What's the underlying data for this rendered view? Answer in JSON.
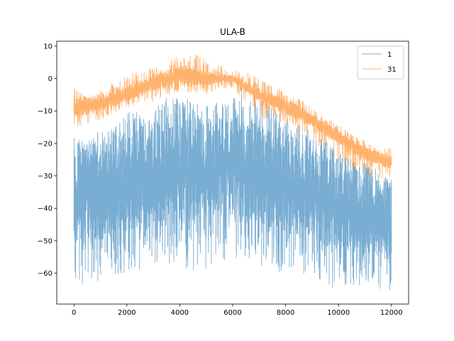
{
  "chart_data": {
    "type": "line",
    "title": "ULA-B",
    "xlabel": "",
    "ylabel": "",
    "xlim": [
      -650,
      12650
    ],
    "ylim": [
      -69.5,
      11.5
    ],
    "xticks": [
      0,
      2000,
      4000,
      6000,
      8000,
      10000,
      12000
    ],
    "xtick_labels": [
      "0",
      "2000",
      "4000",
      "6000",
      "8000",
      "10000",
      "12000"
    ],
    "yticks": [
      10,
      0,
      -10,
      -20,
      -30,
      -40,
      -50,
      -60
    ],
    "ytick_labels": [
      "10",
      "0",
      "−10",
      "−20",
      "−30",
      "−40",
      "−50",
      "−60"
    ],
    "grid": false,
    "legend_position": "top-right",
    "series": [
      {
        "name": "1",
        "color": "#1f77b4",
        "alpha": 0.6,
        "n_points": 12001,
        "upper_envelope": [
          [
            0,
            -18
          ],
          [
            500,
            -20
          ],
          [
            1000,
            -15
          ],
          [
            1500,
            -15
          ],
          [
            2000,
            -10
          ],
          [
            2500,
            -10
          ],
          [
            3000,
            -10
          ],
          [
            3500,
            -6
          ],
          [
            4000,
            -5
          ],
          [
            4500,
            -7
          ],
          [
            5000,
            -8
          ],
          [
            5500,
            -7
          ],
          [
            6000,
            -6
          ],
          [
            6300,
            -2
          ],
          [
            6500,
            -4
          ],
          [
            7000,
            -6
          ],
          [
            7500,
            -8
          ],
          [
            8000,
            -12
          ],
          [
            8500,
            -14
          ],
          [
            9000,
            -16
          ],
          [
            9500,
            -19
          ],
          [
            10000,
            -23
          ],
          [
            10500,
            -25
          ],
          [
            11000,
            -26
          ],
          [
            11500,
            -28
          ],
          [
            12000,
            -31
          ]
        ],
        "typical_high": [
          [
            0,
            -22
          ],
          [
            1000,
            -20
          ],
          [
            2000,
            -16
          ],
          [
            3000,
            -14
          ],
          [
            4000,
            -12
          ],
          [
            5000,
            -12
          ],
          [
            6000,
            -12
          ],
          [
            7000,
            -14
          ],
          [
            8000,
            -18
          ],
          [
            9000,
            -21
          ],
          [
            10000,
            -26
          ],
          [
            11000,
            -29
          ],
          [
            12000,
            -33
          ]
        ],
        "typical_low": [
          [
            0,
            -52
          ],
          [
            1000,
            -50
          ],
          [
            2000,
            -48
          ],
          [
            3000,
            -46
          ],
          [
            4000,
            -45
          ],
          [
            5000,
            -44
          ],
          [
            6000,
            -42
          ],
          [
            7000,
            -45
          ],
          [
            8000,
            -48
          ],
          [
            9000,
            -50
          ],
          [
            10000,
            -53
          ],
          [
            11000,
            -54
          ],
          [
            12000,
            -54
          ]
        ],
        "lower_envelope": [
          [
            0,
            -66
          ],
          [
            1000,
            -62
          ],
          [
            2000,
            -60
          ],
          [
            3000,
            -58
          ],
          [
            4000,
            -58
          ],
          [
            5000,
            -60
          ],
          [
            6000,
            -55
          ],
          [
            7000,
            -58
          ],
          [
            8000,
            -60
          ],
          [
            9000,
            -60
          ],
          [
            10000,
            -66
          ],
          [
            11000,
            -63
          ],
          [
            12000,
            -66
          ]
        ]
      },
      {
        "name": "31",
        "color": "#ff7f0e",
        "alpha": 0.6,
        "n_points": 12001,
        "upper_envelope": [
          [
            0,
            -3
          ],
          [
            500,
            -6
          ],
          [
            1000,
            -4
          ],
          [
            1500,
            -1
          ],
          [
            2000,
            1
          ],
          [
            2500,
            3
          ],
          [
            3000,
            3
          ],
          [
            3500,
            5
          ],
          [
            4000,
            7
          ],
          [
            4500,
            8
          ],
          [
            5000,
            6
          ],
          [
            5500,
            4
          ],
          [
            6000,
            3
          ],
          [
            6500,
            2
          ],
          [
            7000,
            0
          ],
          [
            7500,
            -2
          ],
          [
            8000,
            -4
          ],
          [
            8500,
            -6
          ],
          [
            9000,
            -9
          ],
          [
            9500,
            -12
          ],
          [
            10000,
            -14
          ],
          [
            10500,
            -17
          ],
          [
            11000,
            -19
          ],
          [
            11500,
            -22
          ],
          [
            12000,
            -21
          ]
        ],
        "typical_high": [
          [
            0,
            -6
          ],
          [
            1000,
            -6
          ],
          [
            2000,
            -2
          ],
          [
            3000,
            1
          ],
          [
            4000,
            4
          ],
          [
            5000,
            2
          ],
          [
            6000,
            1
          ],
          [
            7000,
            -3
          ],
          [
            8000,
            -6
          ],
          [
            9000,
            -11
          ],
          [
            10000,
            -16
          ],
          [
            11000,
            -21
          ],
          [
            12000,
            -24
          ]
        ],
        "typical_low": [
          [
            0,
            -12
          ],
          [
            1000,
            -10
          ],
          [
            2000,
            -7
          ],
          [
            3000,
            -4
          ],
          [
            4000,
            -2
          ],
          [
            5000,
            -2
          ],
          [
            6000,
            -1
          ],
          [
            7000,
            -7
          ],
          [
            8000,
            -11
          ],
          [
            9000,
            -15
          ],
          [
            10000,
            -20
          ],
          [
            11000,
            -25
          ],
          [
            12000,
            -28
          ]
        ],
        "lower_envelope": [
          [
            0,
            -15
          ],
          [
            1000,
            -13
          ],
          [
            2000,
            -9
          ],
          [
            3000,
            -7
          ],
          [
            4000,
            -4
          ],
          [
            5000,
            -5
          ],
          [
            6000,
            -3
          ],
          [
            7000,
            -12
          ],
          [
            8000,
            -15
          ],
          [
            9000,
            -19
          ],
          [
            10000,
            -26
          ],
          [
            11000,
            -30
          ],
          [
            12000,
            -32
          ]
        ]
      }
    ]
  }
}
